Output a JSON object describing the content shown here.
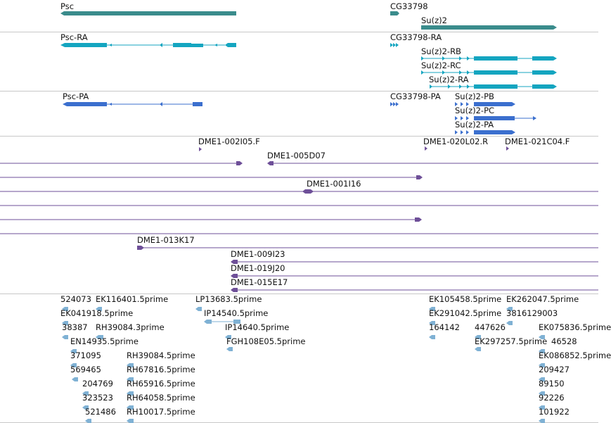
{
  "colors": {
    "gene": "#3a8c8c",
    "transcript": "#14a5c0",
    "protein": "#3b6fce",
    "bac": "#6e4f98",
    "est": "#7fb1d4",
    "separator": "#c8c8c8"
  },
  "tracks": {
    "genes": [
      {
        "label": "Psc"
      },
      {
        "label": "CG33798"
      },
      {
        "label": "Su(z)2"
      }
    ],
    "transcripts": [
      {
        "label": "Psc-RA"
      },
      {
        "label": "CG33798-RA"
      },
      {
        "label": "Su(z)2-RB"
      },
      {
        "label": "Su(z)2-RC"
      },
      {
        "label": "Su(z)2-RA"
      }
    ],
    "proteins": [
      {
        "label": "Psc-PA"
      },
      {
        "label": "CG33798-PA"
      },
      {
        "label": "Su(z)2-PB"
      },
      {
        "label": "Su(z)2-PC"
      },
      {
        "label": "Su(z)2-PA"
      }
    ],
    "bac_clones": [
      {
        "label": "DME1-002I05.F"
      },
      {
        "label": "DME1-020L02.R"
      },
      {
        "label": "DME1-021C04.F"
      },
      {
        "label": "DME1-005D07"
      },
      {
        "label": "DME1-001I16"
      },
      {
        "label": "DME1-013K17"
      },
      {
        "label": "DME1-009I23"
      },
      {
        "label": "DME1-019J20"
      },
      {
        "label": "DME1-015E17"
      }
    ],
    "ests": [
      {
        "label": "524073"
      },
      {
        "label": "EK116401.5prime"
      },
      {
        "label": "EK041918.5prime"
      },
      {
        "label": "38387"
      },
      {
        "label": "RH39084.3prime"
      },
      {
        "label": "EN14935.5prime"
      },
      {
        "label": "371095"
      },
      {
        "label": "RH39084.5prime"
      },
      {
        "label": "569465"
      },
      {
        "label": "RH67816.5prime"
      },
      {
        "label": "204769"
      },
      {
        "label": "RH65916.5prime"
      },
      {
        "label": "323523"
      },
      {
        "label": "RH64058.5prime"
      },
      {
        "label": "521486"
      },
      {
        "label": "RH10017.5prime"
      },
      {
        "label": "LP13683.5prime"
      },
      {
        "label": "IP14540.5prime"
      },
      {
        "label": "IP14640.5prime"
      },
      {
        "label": "FGH108E05.5prime"
      },
      {
        "label": "EK105458.5prime"
      },
      {
        "label": "EK262047.5prime"
      },
      {
        "label": "EK291042.5prime"
      },
      {
        "label": "3816129003"
      },
      {
        "label": "164142"
      },
      {
        "label": "447626"
      },
      {
        "label": "EK075836.5prime"
      },
      {
        "label": "EK297257.5prime"
      },
      {
        "label": "46528"
      },
      {
        "label": "EK086852.5prime"
      },
      {
        "label": "209427"
      },
      {
        "label": "89150"
      },
      {
        "label": "92226"
      },
      {
        "label": "101922"
      }
    ]
  }
}
